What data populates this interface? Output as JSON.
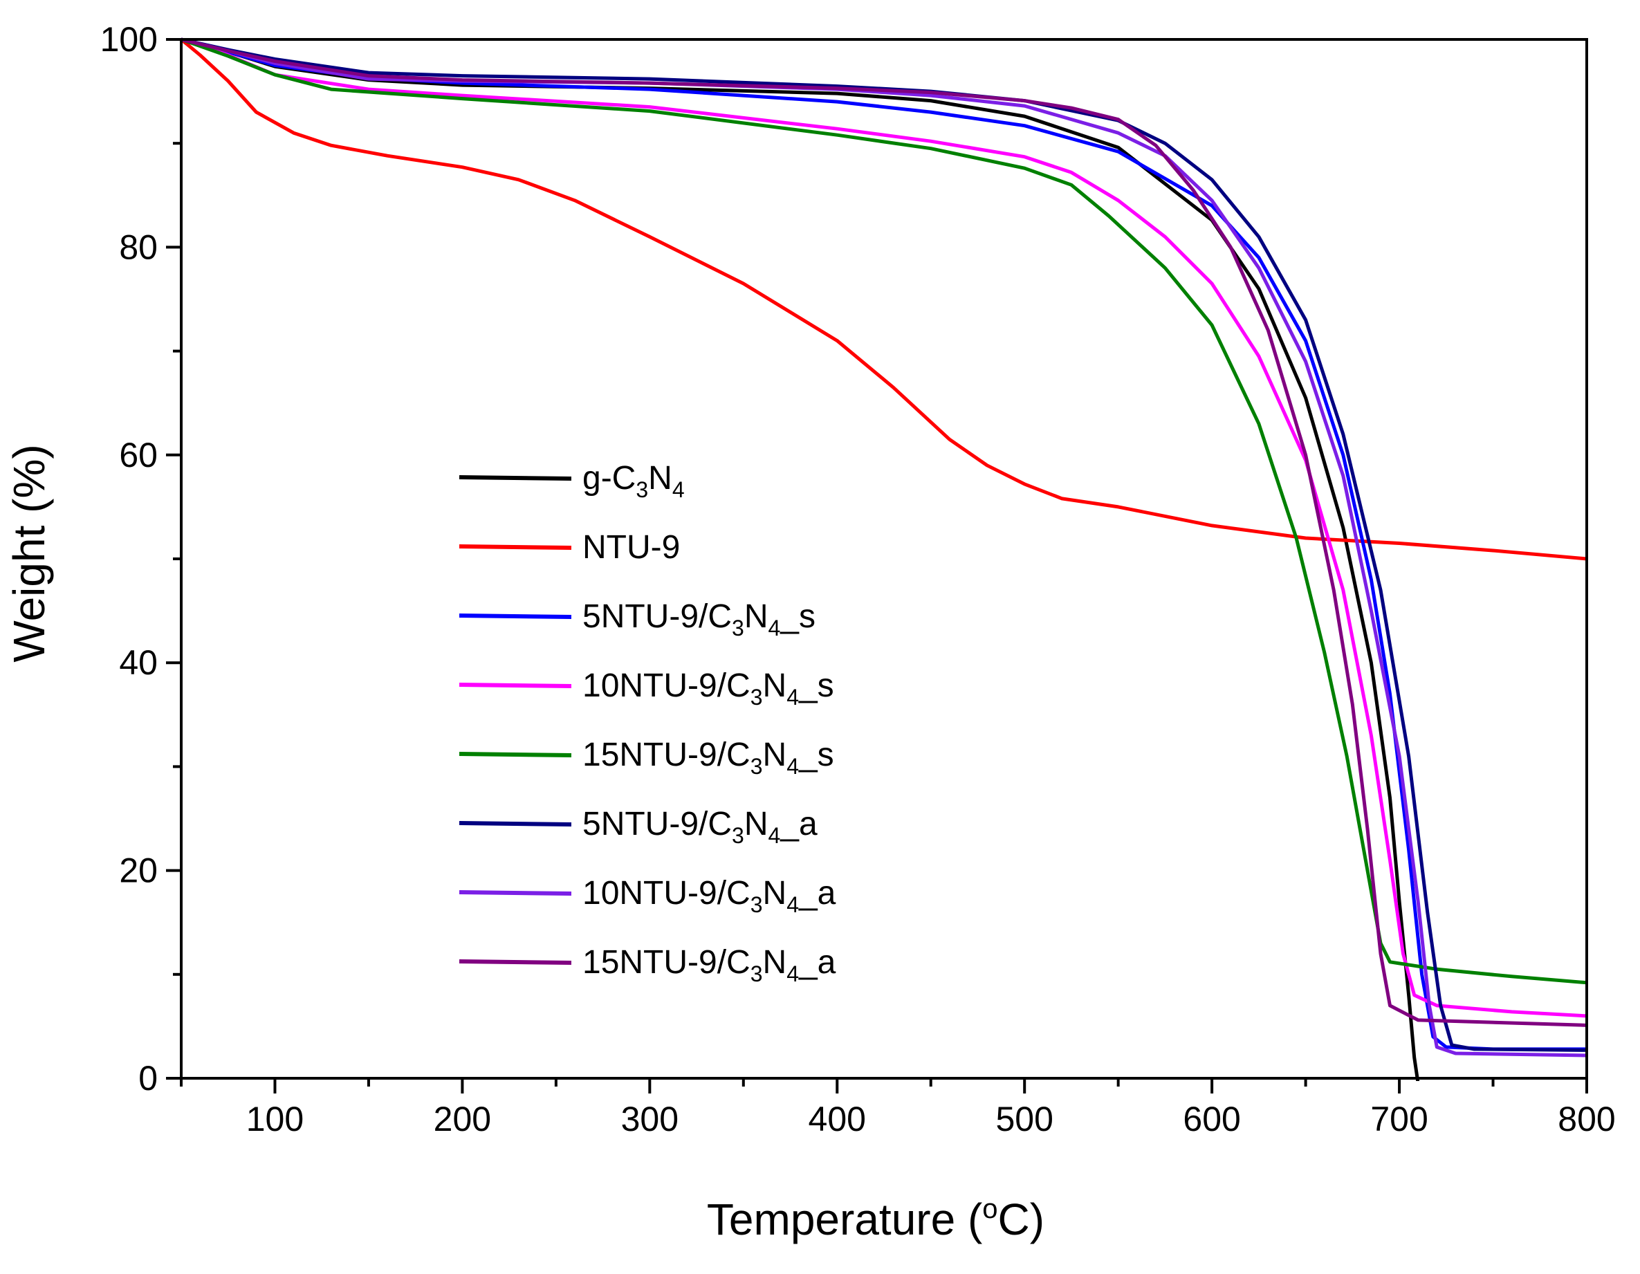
{
  "chart_data": {
    "type": "line",
    "title": "",
    "xlabel": "Temperature (",
    "xlabel_sup": "o",
    "xlabel_end": "C)",
    "ylabel": "Weight (%)",
    "xlim": [
      50,
      800
    ],
    "ylim": [
      0,
      100
    ],
    "xticks": [
      100,
      200,
      300,
      400,
      500,
      600,
      700,
      800
    ],
    "yticks": [
      0,
      20,
      40,
      60,
      80,
      100
    ],
    "legend_position": "center-left",
    "series": [
      {
        "name": "g-C3N4",
        "label_parts": [
          [
            "g-C",
            ""
          ],
          [
            "3",
            "sub"
          ],
          [
            "N",
            ""
          ],
          [
            "4",
            "sub"
          ]
        ],
        "color": "#000000",
        "points": [
          [
            50,
            100
          ],
          [
            75,
            98.8
          ],
          [
            100,
            97.4
          ],
          [
            150,
            96.1
          ],
          [
            200,
            95.6
          ],
          [
            300,
            95.3
          ],
          [
            400,
            94.8
          ],
          [
            450,
            94.1
          ],
          [
            500,
            92.6
          ],
          [
            550,
            89.6
          ],
          [
            600,
            82.6
          ],
          [
            625,
            76
          ],
          [
            650,
            65.5
          ],
          [
            670,
            53
          ],
          [
            685,
            40
          ],
          [
            695,
            27
          ],
          [
            700,
            17
          ],
          [
            705,
            8
          ],
          [
            708,
            2
          ],
          [
            710,
            -0.5
          ]
        ]
      },
      {
        "name": "NTU-9",
        "label_parts": [
          [
            "NTU-9",
            ""
          ]
        ],
        "color": "#ff0000",
        "points": [
          [
            50,
            100
          ],
          [
            60,
            98.5
          ],
          [
            75,
            96
          ],
          [
            90,
            93
          ],
          [
            110,
            91
          ],
          [
            130,
            89.8
          ],
          [
            160,
            88.8
          ],
          [
            200,
            87.7
          ],
          [
            230,
            86.5
          ],
          [
            260,
            84.5
          ],
          [
            300,
            81
          ],
          [
            350,
            76.5
          ],
          [
            400,
            71
          ],
          [
            430,
            66.5
          ],
          [
            460,
            61.5
          ],
          [
            480,
            59
          ],
          [
            500,
            57.2
          ],
          [
            520,
            55.8
          ],
          [
            550,
            55
          ],
          [
            600,
            53.2
          ],
          [
            650,
            52
          ],
          [
            700,
            51.5
          ],
          [
            750,
            50.8
          ],
          [
            800,
            50
          ]
        ]
      },
      {
        "name": "5NTU-9/C3N4_s",
        "label_parts": [
          [
            "5NTU-9/C",
            ""
          ],
          [
            "3",
            "sub"
          ],
          [
            "N",
            ""
          ],
          [
            "4",
            "sub"
          ],
          [
            "_s",
            ""
          ]
        ],
        "color": "#0000ff",
        "points": [
          [
            50,
            100
          ],
          [
            75,
            98.8
          ],
          [
            100,
            97.5
          ],
          [
            150,
            96.3
          ],
          [
            200,
            95.8
          ],
          [
            300,
            95.2
          ],
          [
            400,
            94
          ],
          [
            450,
            93
          ],
          [
            500,
            91.7
          ],
          [
            550,
            89.2
          ],
          [
            600,
            84
          ],
          [
            625,
            79
          ],
          [
            650,
            71
          ],
          [
            670,
            60
          ],
          [
            685,
            48
          ],
          [
            695,
            37
          ],
          [
            705,
            22
          ],
          [
            712,
            10
          ],
          [
            718,
            4
          ],
          [
            725,
            3
          ],
          [
            750,
            2.8
          ],
          [
            800,
            2.8
          ]
        ]
      },
      {
        "name": "10NTU-9/C3N4_s",
        "label_parts": [
          [
            "10NTU-9/C",
            ""
          ],
          [
            "3",
            "sub"
          ],
          [
            "N",
            ""
          ],
          [
            "4",
            "sub"
          ],
          [
            "_s",
            ""
          ]
        ],
        "color": "#ff00ff",
        "points": [
          [
            50,
            100
          ],
          [
            75,
            98.5
          ],
          [
            100,
            96.6
          ],
          [
            150,
            95.2
          ],
          [
            200,
            94.6
          ],
          [
            300,
            93.5
          ],
          [
            400,
            91.4
          ],
          [
            450,
            90.2
          ],
          [
            500,
            88.7
          ],
          [
            525,
            87.2
          ],
          [
            550,
            84.5
          ],
          [
            575,
            81
          ],
          [
            600,
            76.5
          ],
          [
            625,
            69.5
          ],
          [
            650,
            59.5
          ],
          [
            670,
            47
          ],
          [
            685,
            33
          ],
          [
            695,
            21
          ],
          [
            702,
            12
          ],
          [
            708,
            8
          ],
          [
            720,
            7
          ],
          [
            760,
            6.4
          ],
          [
            800,
            6
          ]
        ]
      },
      {
        "name": "15NTU-9/C3N4_s",
        "label_parts": [
          [
            "15NTU-9/C",
            ""
          ],
          [
            "3",
            "sub"
          ],
          [
            "N",
            ""
          ],
          [
            "4",
            "sub"
          ],
          [
            "_s",
            ""
          ]
        ],
        "color": "#008000",
        "points": [
          [
            50,
            100
          ],
          [
            75,
            98.4
          ],
          [
            100,
            96.6
          ],
          [
            130,
            95.2
          ],
          [
            200,
            94.3
          ],
          [
            300,
            93.1
          ],
          [
            400,
            90.8
          ],
          [
            450,
            89.5
          ],
          [
            500,
            87.6
          ],
          [
            525,
            86
          ],
          [
            545,
            83
          ],
          [
            575,
            78
          ],
          [
            600,
            72.5
          ],
          [
            625,
            63
          ],
          [
            645,
            52
          ],
          [
            660,
            41
          ],
          [
            672,
            31
          ],
          [
            682,
            21
          ],
          [
            690,
            13
          ],
          [
            695,
            11.2
          ],
          [
            720,
            10.5
          ],
          [
            760,
            9.8
          ],
          [
            800,
            9.2
          ]
        ]
      },
      {
        "name": "5NTU-9/C3N4_a",
        "label_parts": [
          [
            "5NTU-9/C",
            ""
          ],
          [
            "3",
            "sub"
          ],
          [
            "N",
            ""
          ],
          [
            "4",
            "sub"
          ],
          [
            "_a",
            ""
          ]
        ],
        "color": "#000080",
        "points": [
          [
            50,
            100
          ],
          [
            75,
            99
          ],
          [
            100,
            98.1
          ],
          [
            150,
            96.8
          ],
          [
            200,
            96.5
          ],
          [
            300,
            96.2
          ],
          [
            400,
            95.5
          ],
          [
            450,
            95
          ],
          [
            500,
            94.1
          ],
          [
            550,
            92.2
          ],
          [
            575,
            90
          ],
          [
            600,
            86.5
          ],
          [
            625,
            81
          ],
          [
            650,
            73
          ],
          [
            670,
            62
          ],
          [
            690,
            47
          ],
          [
            705,
            31
          ],
          [
            715,
            16
          ],
          [
            722,
            7
          ],
          [
            728,
            3.2
          ],
          [
            740,
            2.8
          ],
          [
            800,
            2.7
          ]
        ]
      },
      {
        "name": "10NTU-9/C3N4_a",
        "label_parts": [
          [
            "10NTU-9/C",
            ""
          ],
          [
            "3",
            "sub"
          ],
          [
            "N",
            ""
          ],
          [
            "4",
            "sub"
          ],
          [
            "_a",
            ""
          ]
        ],
        "color": "#7b1fe6",
        "points": [
          [
            50,
            100
          ],
          [
            75,
            98.9
          ],
          [
            100,
            97.7
          ],
          [
            150,
            96.2
          ],
          [
            200,
            96
          ],
          [
            300,
            95.8
          ],
          [
            400,
            95.2
          ],
          [
            450,
            94.6
          ],
          [
            500,
            93.6
          ],
          [
            550,
            91
          ],
          [
            575,
            88.8
          ],
          [
            600,
            84.5
          ],
          [
            625,
            78
          ],
          [
            650,
            69
          ],
          [
            670,
            58
          ],
          [
            685,
            45
          ],
          [
            700,
            31
          ],
          [
            710,
            17
          ],
          [
            716,
            7
          ],
          [
            720,
            3
          ],
          [
            730,
            2.4
          ],
          [
            800,
            2.2
          ]
        ]
      },
      {
        "name": "15NTU-9/C3N4_a",
        "label_parts": [
          [
            "15NTU-9/C",
            ""
          ],
          [
            "3",
            "sub"
          ],
          [
            "N",
            ""
          ],
          [
            "4",
            "sub"
          ],
          [
            "_a",
            ""
          ]
        ],
        "color": "#800080",
        "points": [
          [
            50,
            100
          ],
          [
            75,
            98.9
          ],
          [
            100,
            97.9
          ],
          [
            150,
            96.5
          ],
          [
            200,
            96.1
          ],
          [
            300,
            95.8
          ],
          [
            400,
            95.3
          ],
          [
            450,
            94.9
          ],
          [
            500,
            94.1
          ],
          [
            525,
            93.4
          ],
          [
            550,
            92.3
          ],
          [
            570,
            89.8
          ],
          [
            590,
            85.5
          ],
          [
            610,
            80
          ],
          [
            630,
            72
          ],
          [
            650,
            60
          ],
          [
            665,
            47
          ],
          [
            675,
            36
          ],
          [
            683,
            24
          ],
          [
            690,
            12
          ],
          [
            695,
            7
          ],
          [
            710,
            5.6
          ],
          [
            800,
            5.1
          ]
        ]
      }
    ]
  }
}
